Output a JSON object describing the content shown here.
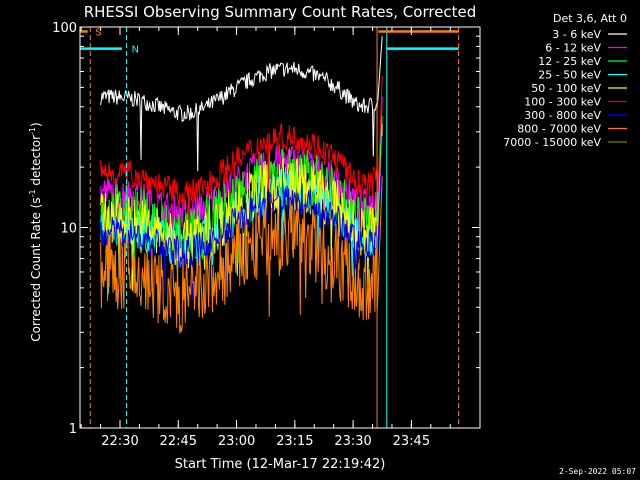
{
  "chart_data": {
    "type": "line",
    "title": "RHESSI Observing Summary Count Rates, Corrected",
    "xlabel": "Start Time (12-Mar-17 22:19:42)",
    "ylabel_main": "Corrected Count Rate (s",
    "ylabel_sup1": "-1",
    "ylabel_mid": " detector",
    "ylabel_sup2": "-1",
    "ylabel_end": ")",
    "y_scale": "log",
    "ylim": [
      1,
      100
    ],
    "y_ticks": [
      {
        "value": 1,
        "label": "1"
      },
      {
        "value": 10,
        "label": "10"
      },
      {
        "value": 100,
        "label": "100"
      }
    ],
    "x_ticks": [
      {
        "time": "22:30",
        "label": "22:30"
      },
      {
        "time": "22:45",
        "label": "22:45"
      },
      {
        "time": "23:00",
        "label": "23:00"
      },
      {
        "time": "23:15",
        "label": "23:15"
      },
      {
        "time": "23:30",
        "label": "23:30"
      },
      {
        "time": "23:45",
        "label": "23:45"
      }
    ],
    "legend_header": "Det 3,6, Att 0",
    "legend_position": "right",
    "series": [
      {
        "name": "3 - 6 keV",
        "color": "#ffffff",
        "base": 45,
        "amp": 0.25,
        "noise": 0.06
      },
      {
        "name": "6 - 12 keV",
        "color": "#ff00ff",
        "base": 15,
        "amp": 0.3,
        "noise": 0.12
      },
      {
        "name": "12 - 25 keV",
        "color": "#00ff00",
        "base": 12,
        "amp": 0.35,
        "noise": 0.22
      },
      {
        "name": "25 - 50 keV",
        "color": "#00ffff",
        "base": 10.5,
        "amp": 0.33,
        "noise": 0.16
      },
      {
        "name": "50 - 100 keV",
        "color": "#ffff00",
        "base": 11,
        "amp": 0.35,
        "noise": 0.2
      },
      {
        "name": "100 - 300 keV",
        "color": "#ff0000",
        "base": 19,
        "amp": 0.32,
        "noise": 0.1
      },
      {
        "name": "300 - 800 keV",
        "color": "#0000ff",
        "base": 9.5,
        "amp": 0.3,
        "noise": 0.12
      },
      {
        "name": "800 - 7000 keV",
        "color": "#ff8000",
        "base": 6,
        "amp": 0.35,
        "noise": 0.28
      },
      {
        "name": "7000 - 15000 keV",
        "color": "#808000",
        "base": 0,
        "amp": 0,
        "noise": 0
      }
    ],
    "data_interval": {
      "start": "22:25:00",
      "end": "23:36:30"
    },
    "markers": [
      {
        "label": "S",
        "color": "#ff8000",
        "start": "22:19:42",
        "end": "22:21:40",
        "line_end": "22:22:20",
        "level": 95
      },
      {
        "label": "N",
        "color": "#00ffff",
        "start": "22:19:42",
        "end": "22:30:30",
        "line_end": "22:31:40",
        "level": 78
      },
      {
        "label": "",
        "color": "#ff8000",
        "start": "23:36:30",
        "end": "23:57:10",
        "line_end": "23:57:10",
        "level": 95
      },
      {
        "label": "",
        "color": "#00ffff",
        "start": "23:38:40",
        "end": "23:57:10",
        "line_end": "23:57:10",
        "level": 78
      }
    ],
    "vertical_lines": [
      {
        "time": "22:19:42",
        "color": "#00ffff",
        "style": "solid"
      },
      {
        "time": "22:22:20",
        "color": "#ff8000",
        "style": "dashed"
      },
      {
        "time": "22:31:40",
        "color": "#00ffff",
        "style": "dashed"
      },
      {
        "time": "23:36:10",
        "color": "#ff8000",
        "style": "solid"
      },
      {
        "time": "23:38:40",
        "color": "#00ffff",
        "style": "solid"
      },
      {
        "time": "23:57:10",
        "color": "#ff8000",
        "style": "dashed"
      }
    ]
  },
  "footer_date": "2-Sep-2022 05:07"
}
